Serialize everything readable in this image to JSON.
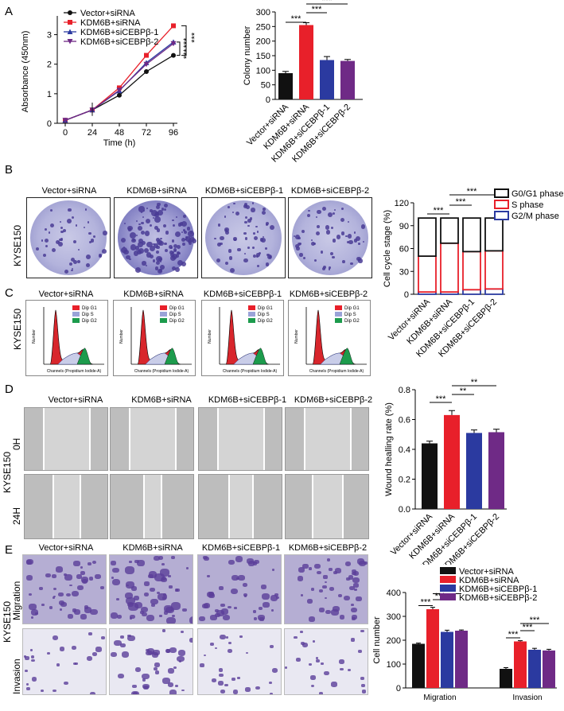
{
  "panels": {
    "A": "A",
    "B": "B",
    "C": "C",
    "D": "D",
    "E": "E"
  },
  "groups": [
    "Vector+siRNA",
    "KDM6B+siRNA",
    "KDM6B+siCEBPβ-1",
    "KDM6B+siCEBPβ-2"
  ],
  "cell_line": "KYSE150",
  "colors": {
    "vector": "#111111",
    "kdm6b": "#e8202a",
    "si1": "#2b3aa0",
    "si2": "#6f2a86"
  },
  "panelC": {
    "legend": [
      "Dip G1",
      "Dip S",
      "Dip G2"
    ],
    "xlabel": "Channels (Propidium Iodide-A)",
    "ylabel": "Number"
  },
  "panelD": {
    "rows": [
      "0H",
      "24H"
    ]
  },
  "panelE": {
    "rows": [
      "Migration",
      "Invasion"
    ]
  },
  "chart_data": [
    {
      "type": "line",
      "xlabel": "Time (h)",
      "ylabel": "Absorbance (450nm)",
      "x": [
        0,
        24,
        48,
        72,
        96
      ],
      "xlim": [
        0,
        96
      ],
      "ylim": [
        0,
        3.5
      ],
      "yticks": [
        0,
        1,
        2,
        3
      ],
      "series": [
        {
          "name": "Vector+siRNA",
          "values": [
            0.1,
            0.45,
            0.95,
            1.75,
            2.3
          ],
          "color": "#111111",
          "marker": "circle"
        },
        {
          "name": "KDM6B+siRNA",
          "values": [
            0.1,
            0.45,
            1.2,
            2.3,
            3.3
          ],
          "color": "#e8202a",
          "marker": "square"
        },
        {
          "name": "KDM6B+siCEBPβ-1",
          "values": [
            0.1,
            0.45,
            1.1,
            2.05,
            2.75
          ],
          "color": "#2b3aa0",
          "marker": "triangle"
        },
        {
          "name": "KDM6B+siCEBPβ-2",
          "values": [
            0.1,
            0.45,
            1.12,
            2.0,
            2.7
          ],
          "color": "#6f2a86",
          "marker": "triangle-down"
        }
      ],
      "legend": "top-left",
      "significance": [
        "***",
        "***",
        "***"
      ]
    },
    {
      "type": "bar",
      "ylabel": "Colony number",
      "categories": [
        "Vector+siRNA",
        "KDM6B+siRNA",
        "KDM6B+siCEBPβ-1",
        "KDM6B+siCEBPβ-2"
      ],
      "values": [
        90,
        255,
        135,
        132
      ],
      "errors": [
        6,
        8,
        12,
        5
      ],
      "ylim": [
        0,
        300
      ],
      "yticks": [
        0,
        50,
        100,
        150,
        200,
        250,
        300
      ],
      "significance": [
        "***",
        "***",
        "***"
      ]
    },
    {
      "type": "bar",
      "stacked": true,
      "ylabel": "Cell cycle stage (%)",
      "categories": [
        "Vector+siRNA",
        "KDM6B+siRNA",
        "KDM6B+siCEBPβ-1",
        "KDM6B+siCEBPβ-2"
      ],
      "series": [
        {
          "name": "G0/G1 phase",
          "values": [
            50,
            33,
            44,
            43
          ],
          "color": "#111111"
        },
        {
          "name": "S phase",
          "values": [
            47,
            64,
            50,
            50
          ],
          "color": "#e8202a"
        },
        {
          "name": "G2/M phase",
          "values": [
            3,
            3,
            6,
            7
          ],
          "color": "#2b3aa0"
        }
      ],
      "ylim": [
        0,
        120
      ],
      "yticks": [
        0,
        30,
        60,
        90,
        120
      ],
      "legend": "top-right",
      "significance": [
        "***",
        "***",
        "***"
      ]
    },
    {
      "type": "bar",
      "ylabel": "Wound healling rate (%)",
      "categories": [
        "Vector+siRNA",
        "KDM6B+siRNA",
        "KDM6B+siCEBPβ-1",
        "KDM6B+siCEBPβ-2"
      ],
      "values": [
        0.44,
        0.63,
        0.51,
        0.515
      ],
      "errors": [
        0.015,
        0.03,
        0.02,
        0.02
      ],
      "ylim": [
        0,
        0.8
      ],
      "yticks": [
        0.0,
        0.2,
        0.4,
        0.6,
        0.8
      ],
      "significance": [
        "***",
        "**",
        "**"
      ]
    },
    {
      "type": "bar",
      "ylabel": "Cell number",
      "categories": [
        "Migration",
        "Invasion"
      ],
      "series": [
        {
          "name": "Vector+siRNA",
          "values": [
            185,
            80
          ],
          "errors": [
            3,
            5
          ],
          "color": "#111111"
        },
        {
          "name": "KDM6B+siRNA",
          "values": [
            330,
            195
          ],
          "errors": [
            8,
            3
          ],
          "color": "#e8202a"
        },
        {
          "name": "KDM6B+siCEBPβ-1",
          "values": [
            235,
            160
          ],
          "errors": [
            7,
            6
          ],
          "color": "#2b3aa0"
        },
        {
          "name": "KDM6B+siCEBPβ-2",
          "values": [
            240,
            157
          ],
          "errors": [
            3,
            5
          ],
          "color": "#6f2a86"
        }
      ],
      "ylim": [
        0,
        400
      ],
      "yticks": [
        0,
        100,
        200,
        300,
        400
      ],
      "legend": "top-right",
      "significance": [
        "***",
        "***",
        "***",
        "***",
        "***",
        "***"
      ]
    }
  ]
}
